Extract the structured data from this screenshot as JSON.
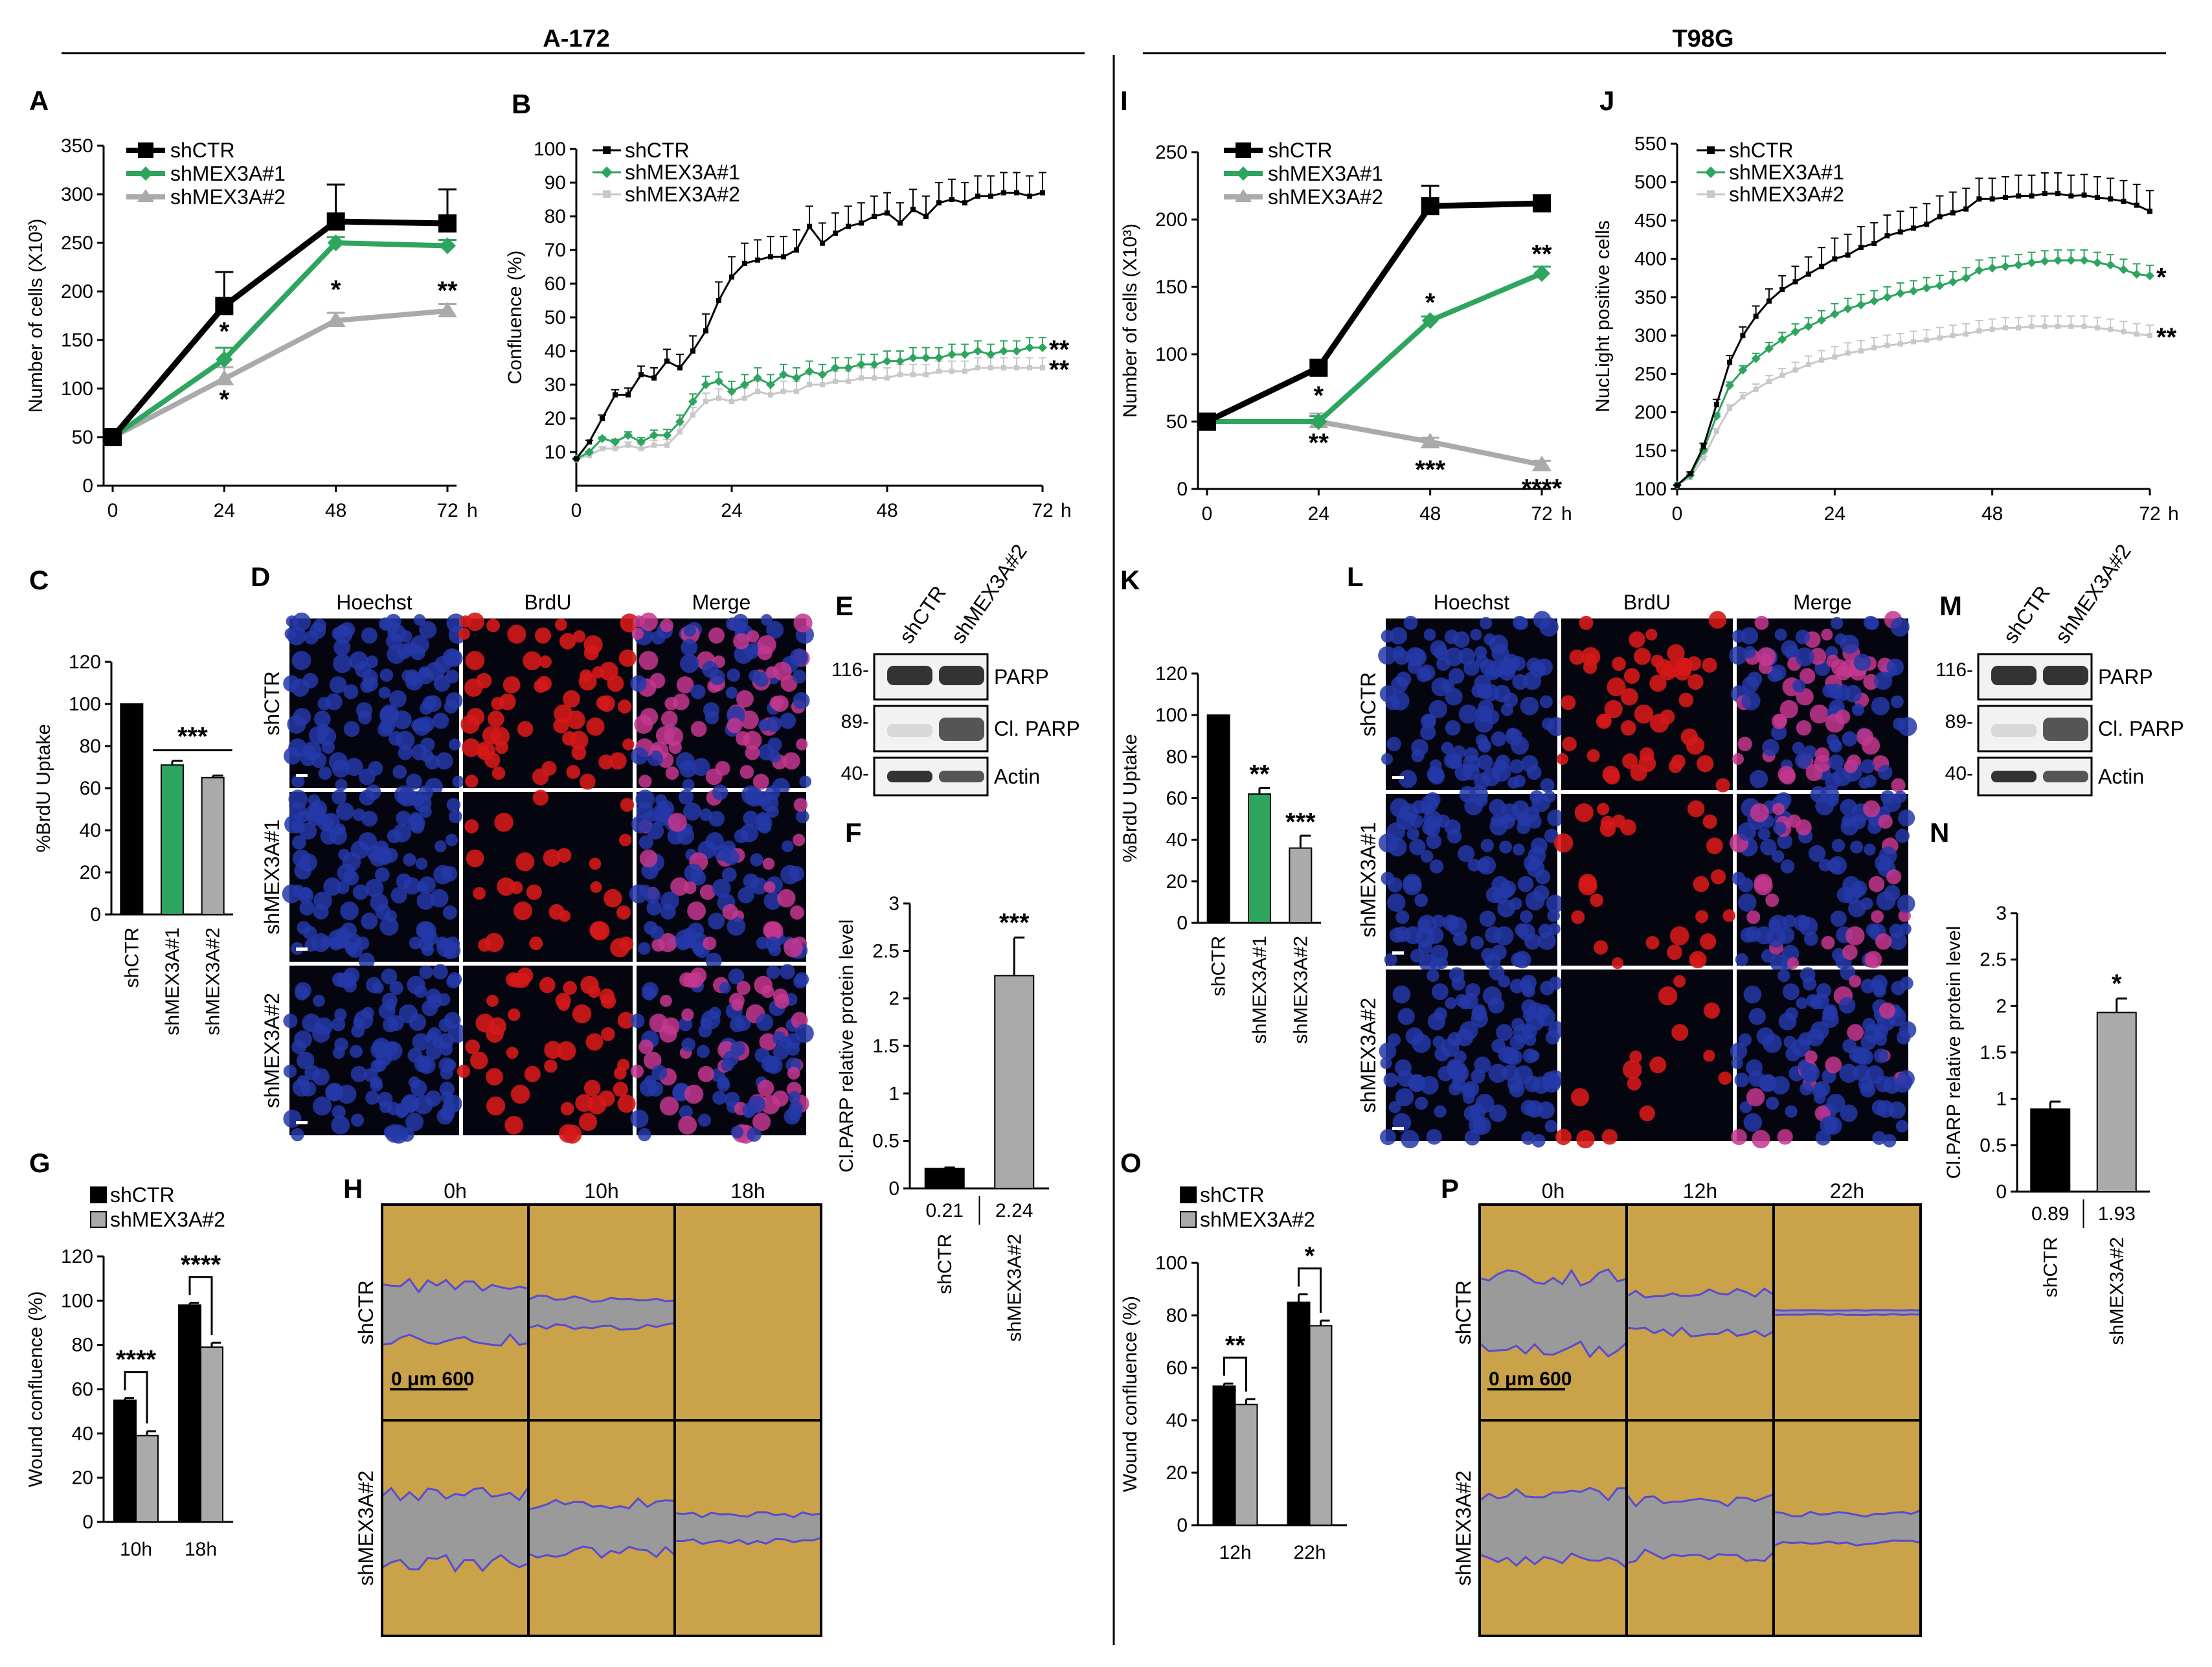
{
  "headers": {
    "left": "A-172",
    "right": "T98G"
  },
  "colors": {
    "black": "#000000",
    "green": "#2ea55f",
    "gray": "#aaaaaa",
    "lightgray": "#c8c8c8",
    "hoechst": "#2438a8",
    "brdu": "#d41818",
    "wound_bg": "#c9a24a",
    "wound_gap": "#9a9a9a"
  },
  "panels": {
    "A": {
      "letter": "A",
      "type": "line",
      "ylabel": "Number of cells (X10³)",
      "ylim": [
        0,
        350
      ],
      "yticks": [
        0,
        50,
        100,
        150,
        200,
        250,
        300,
        350
      ],
      "xticks": [
        "0",
        "24",
        "48",
        "72"
      ],
      "xunit": "h",
      "x": [
        0,
        24,
        48,
        72
      ],
      "series": [
        {
          "name": "shCTR",
          "values": [
            50,
            185,
            272,
            270
          ],
          "err": [
            0,
            35,
            38,
            35
          ]
        },
        {
          "name": "shMEX3A#1",
          "values": [
            50,
            130,
            250,
            247
          ],
          "err": [
            0,
            12,
            6,
            6
          ]
        },
        {
          "name": "shMEX3A#2",
          "values": [
            50,
            110,
            170,
            180
          ],
          "err": [
            0,
            12,
            8,
            7
          ]
        }
      ],
      "stars": [
        {
          "x": 24,
          "text": "*",
          "y": 150
        },
        {
          "x": 24,
          "text": "*",
          "y": 80
        },
        {
          "x": 48,
          "text": "*",
          "y": 193
        },
        {
          "x": 72,
          "text": "**",
          "y": 192
        }
      ]
    },
    "B": {
      "letter": "B",
      "type": "line",
      "ylabel": "Confluence (%)",
      "ylim": [
        0,
        100
      ],
      "yticks": [
        10,
        20,
        30,
        40,
        50,
        60,
        70,
        80,
        90,
        100
      ],
      "xticks": [
        "0",
        "24",
        "48",
        "72"
      ],
      "xunit": "h",
      "series": [
        {
          "name": "shCTR",
          "values": [
            8,
            13,
            20,
            27,
            27,
            33,
            32,
            37,
            35,
            40,
            46,
            55,
            62,
            66,
            67,
            68,
            68,
            70,
            77,
            72,
            75,
            77,
            78,
            80,
            81,
            78,
            82,
            80,
            84,
            85,
            84,
            86,
            86,
            87,
            87,
            86,
            87
          ]
        },
        {
          "name": "shMEX3A#1",
          "values": [
            8,
            10,
            14,
            13,
            15,
            13,
            15,
            15,
            19,
            25,
            30,
            31,
            28,
            30,
            32,
            30,
            33,
            32,
            34,
            33,
            35,
            35,
            36,
            36,
            37,
            37,
            38,
            38,
            38,
            39,
            39,
            40,
            39,
            40,
            40,
            41,
            41
          ]
        },
        {
          "name": "shMEX3A#2",
          "values": [
            8,
            9,
            11,
            11,
            12,
            11,
            12,
            12,
            16,
            21,
            25,
            26,
            25,
            26,
            28,
            27,
            28,
            28,
            30,
            30,
            31,
            31,
            32,
            32,
            32,
            33,
            33,
            33,
            34,
            34,
            34,
            35,
            35,
            35,
            35,
            35,
            35
          ]
        }
      ],
      "stars": [
        {
          "text": "**",
          "y": 41
        },
        {
          "text": "**",
          "y": 35
        }
      ]
    },
    "C": {
      "letter": "C",
      "type": "bar",
      "ylabel": "%BrdU Uptake",
      "ylim": [
        0,
        120
      ],
      "yticks": [
        0,
        20,
        40,
        60,
        80,
        100,
        120
      ],
      "categories": [
        "shCTR",
        "shMEX3A#1",
        "shMEX3A#2"
      ],
      "values": [
        100,
        71,
        65
      ],
      "err": [
        0,
        2,
        1
      ],
      "star": "***"
    },
    "D": {
      "letter": "D",
      "columns": [
        "Hoechst",
        "BrdU",
        "Merge"
      ],
      "rows": [
        "shCTR",
        "shMEX3A#1",
        "shMEX3A#2"
      ]
    },
    "E": {
      "letter": "E",
      "lanes": [
        "shCTR",
        "shMEX3A#2"
      ],
      "bands": [
        {
          "mw": "116-",
          "label": "PARP"
        },
        {
          "mw": "89-",
          "label": "Cl. PARP"
        },
        {
          "mw": "40-",
          "label": "Actin"
        }
      ]
    },
    "F": {
      "letter": "F",
      "type": "bar",
      "ylabel": "Cl.PARP relative protein level",
      "ylim": [
        0,
        3
      ],
      "yticks": [
        "0",
        "0.5",
        "1",
        "1.5",
        "2",
        "2.5",
        "3"
      ],
      "categories": [
        "shCTR",
        "shMEX3A#2"
      ],
      "values": [
        0.21,
        2.24
      ],
      "err": [
        0.01,
        0.4
      ],
      "value_labels": [
        "0.21",
        "2.24"
      ],
      "star": "***"
    },
    "G": {
      "letter": "G",
      "type": "bar",
      "ylabel": "Wound confluence (%)",
      "ylim": [
        0,
        120
      ],
      "yticks": [
        0,
        20,
        40,
        60,
        80,
        100,
        120
      ],
      "categories": [
        "10h",
        "18h"
      ],
      "legend": [
        "shCTR",
        "shMEX3A#2"
      ],
      "series": [
        {
          "name": "shCTR",
          "values": [
            55,
            98
          ],
          "err": [
            1,
            1
          ]
        },
        {
          "name": "shMEX3A#2",
          "values": [
            39,
            79
          ],
          "err": [
            2,
            2
          ]
        }
      ],
      "stars": [
        "****",
        "****"
      ]
    },
    "H": {
      "letter": "H",
      "columns": [
        "0h",
        "10h",
        "18h"
      ],
      "rows": [
        "shCTR",
        "shMEX3A#2"
      ],
      "scale": "0  μm 600"
    },
    "I": {
      "letter": "I",
      "type": "line",
      "ylabel": "Number of cells (X10³)",
      "ylim": [
        0,
        250
      ],
      "yticks": [
        0,
        50,
        100,
        150,
        200,
        250
      ],
      "xticks": [
        "0",
        "24",
        "48",
        "72"
      ],
      "xunit": "h",
      "x": [
        0,
        24,
        48,
        72
      ],
      "series": [
        {
          "name": "shCTR",
          "values": [
            50,
            90,
            210,
            212
          ],
          "err": [
            0,
            4,
            15,
            4
          ]
        },
        {
          "name": "shMEX3A#1",
          "values": [
            50,
            50,
            125,
            160
          ],
          "err": [
            0,
            4,
            3,
            5
          ]
        },
        {
          "name": "shMEX3A#2",
          "values": [
            50,
            50,
            35,
            18
          ],
          "err": [
            0,
            6,
            3,
            3
          ]
        }
      ],
      "stars": [
        {
          "x": 72,
          "text": "**",
          "y": 168
        },
        {
          "x": 48,
          "text": "*",
          "y": 132
        },
        {
          "x": 24,
          "text": "*",
          "y": 63
        },
        {
          "x": 24,
          "text": "**",
          "y": 28
        },
        {
          "x": 48,
          "text": "***",
          "y": 8
        },
        {
          "x": 72,
          "text": "****",
          "y": -6
        }
      ]
    },
    "J": {
      "letter": "J",
      "type": "line",
      "ylabel": "NucLight positive cells",
      "ylim": [
        100,
        550
      ],
      "yticks": [
        100,
        150,
        200,
        250,
        300,
        350,
        400,
        450,
        500,
        550
      ],
      "xticks": [
        "0",
        "24",
        "48",
        "72"
      ],
      "xunit": "h",
      "series": [
        {
          "name": "shCTR",
          "values": [
            105,
            120,
            155,
            210,
            265,
            300,
            325,
            345,
            360,
            370,
            380,
            390,
            400,
            405,
            415,
            420,
            430,
            435,
            440,
            445,
            455,
            460,
            465,
            478,
            478,
            480,
            482,
            482,
            485,
            485,
            482,
            483,
            480,
            478,
            475,
            470,
            462
          ]
        },
        {
          "name": "shMEX3A#1",
          "values": [
            105,
            118,
            150,
            195,
            235,
            255,
            270,
            283,
            295,
            305,
            312,
            320,
            328,
            335,
            340,
            345,
            350,
            355,
            358,
            362,
            365,
            370,
            375,
            385,
            388,
            390,
            392,
            395,
            397,
            398,
            398,
            398,
            395,
            392,
            386,
            380,
            378
          ]
        },
        {
          "name": "shMEX3A#2",
          "values": [
            105,
            115,
            140,
            175,
            205,
            220,
            230,
            240,
            248,
            255,
            262,
            268,
            272,
            277,
            280,
            284,
            287,
            289,
            292,
            294,
            297,
            300,
            302,
            306,
            308,
            310,
            310,
            312,
            312,
            312,
            312,
            312,
            310,
            308,
            305,
            302,
            300
          ]
        }
      ],
      "stars": [
        {
          "text": "*",
          "y": 378
        },
        {
          "text": "**",
          "y": 300
        }
      ]
    },
    "K": {
      "letter": "K",
      "type": "bar",
      "ylabel": "%BrdU Uptake",
      "ylim": [
        0,
        120
      ],
      "yticks": [
        0,
        20,
        40,
        60,
        80,
        100,
        120
      ],
      "categories": [
        "shCTR",
        "shMEX3A#1",
        "shMEX3A#2"
      ],
      "values": [
        100,
        62,
        36
      ],
      "err": [
        0,
        3,
        6
      ],
      "stars": [
        "",
        "**",
        "***"
      ]
    },
    "L": {
      "letter": "L",
      "columns": [
        "Hoechst",
        "BrdU",
        "Merge"
      ],
      "rows": [
        "shCTR",
        "shMEX3A#1",
        "shMEX3A#2"
      ]
    },
    "M": {
      "letter": "M",
      "lanes": [
        "shCTR",
        "shMEX3A#2"
      ],
      "bands": [
        {
          "mw": "116-",
          "label": "PARP"
        },
        {
          "mw": "89-",
          "label": "Cl. PARP"
        },
        {
          "mw": "40-",
          "label": "Actin"
        }
      ]
    },
    "N": {
      "letter": "N",
      "type": "bar",
      "ylabel": "Cl.PARP relative protein level",
      "ylim": [
        0,
        3
      ],
      "yticks": [
        "0",
        "0.5",
        "1",
        "1.5",
        "2",
        "2.5",
        "3"
      ],
      "categories": [
        "shCTR",
        "shMEX3A#2"
      ],
      "values": [
        0.89,
        1.93
      ],
      "err": [
        0.08,
        0.15
      ],
      "value_labels": [
        "0.89",
        "1.93"
      ],
      "star": "*"
    },
    "O": {
      "letter": "O",
      "type": "bar",
      "ylabel": "Wound confluence (%)",
      "ylim": [
        0,
        100
      ],
      "yticks": [
        0,
        20,
        40,
        60,
        80,
        100
      ],
      "categories": [
        "12h",
        "22h"
      ],
      "legend": [
        "shCTR",
        "shMEX3A#2"
      ],
      "series": [
        {
          "name": "shCTR",
          "values": [
            53,
            85
          ],
          "err": [
            1,
            3
          ]
        },
        {
          "name": "shMEX3A#2",
          "values": [
            46,
            76
          ],
          "err": [
            2,
            2
          ]
        }
      ],
      "stars": [
        "**",
        "*"
      ]
    },
    "P": {
      "letter": "P",
      "columns": [
        "0h",
        "12h",
        "22h"
      ],
      "rows": [
        "shCTR",
        "shMEX3A#2"
      ],
      "scale": "0  μm 600"
    }
  },
  "chart_data": [
    {
      "panel": "A",
      "type": "line",
      "title": "",
      "xlabel": "",
      "ylabel": "Number of cells (X10³)",
      "x": [
        0,
        24,
        48,
        72
      ],
      "ylim": [
        0,
        350
      ],
      "series": [
        {
          "name": "shCTR",
          "values": [
            50,
            185,
            272,
            270
          ]
        },
        {
          "name": "shMEX3A#1",
          "values": [
            50,
            130,
            250,
            247
          ]
        },
        {
          "name": "shMEX3A#2",
          "values": [
            50,
            110,
            170,
            180
          ]
        }
      ]
    },
    {
      "panel": "B",
      "type": "line",
      "title": "",
      "xlabel": "",
      "ylabel": "Confluence (%)",
      "xlim": [
        0,
        72
      ],
      "ylim": [
        0,
        100
      ],
      "series": [
        {
          "name": "shCTR",
          "final": 87
        },
        {
          "name": "shMEX3A#1",
          "final": 41
        },
        {
          "name": "shMEX3A#2",
          "final": 35
        }
      ]
    },
    {
      "panel": "C",
      "type": "bar",
      "title": "",
      "xlabel": "",
      "ylabel": "%BrdU Uptake",
      "categories": [
        "shCTR",
        "shMEX3A#1",
        "shMEX3A#2"
      ],
      "values": [
        100,
        71,
        65
      ],
      "ylim": [
        0,
        120
      ]
    },
    {
      "panel": "F",
      "type": "bar",
      "title": "",
      "xlabel": "",
      "ylabel": "Cl.PARP relative protein level",
      "categories": [
        "shCTR",
        "shMEX3A#2"
      ],
      "values": [
        0.21,
        2.24
      ],
      "ylim": [
        0,
        3
      ]
    },
    {
      "panel": "G",
      "type": "bar",
      "title": "",
      "xlabel": "",
      "ylabel": "Wound confluence (%)",
      "categories": [
        "10h",
        "18h"
      ],
      "ylim": [
        0,
        120
      ],
      "series": [
        {
          "name": "shCTR",
          "values": [
            55,
            98
          ]
        },
        {
          "name": "shMEX3A#2",
          "values": [
            39,
            79
          ]
        }
      ]
    },
    {
      "panel": "I",
      "type": "line",
      "title": "",
      "xlabel": "",
      "ylabel": "Number of cells (X10³)",
      "x": [
        0,
        24,
        48,
        72
      ],
      "ylim": [
        0,
        250
      ],
      "series": [
        {
          "name": "shCTR",
          "values": [
            50,
            90,
            210,
            212
          ]
        },
        {
          "name": "shMEX3A#1",
          "values": [
            50,
            50,
            125,
            160
          ]
        },
        {
          "name": "shMEX3A#2",
          "values": [
            50,
            50,
            35,
            18
          ]
        }
      ]
    },
    {
      "panel": "J",
      "type": "line",
      "title": "",
      "xlabel": "",
      "ylabel": "NucLight positive cells",
      "xlim": [
        0,
        72
      ],
      "ylim": [
        100,
        550
      ],
      "series": [
        {
          "name": "shCTR",
          "final": 462
        },
        {
          "name": "shMEX3A#1",
          "final": 378
        },
        {
          "name": "shMEX3A#2",
          "final": 300
        }
      ]
    },
    {
      "panel": "K",
      "type": "bar",
      "title": "",
      "xlabel": "",
      "ylabel": "%BrdU Uptake",
      "categories": [
        "shCTR",
        "shMEX3A#1",
        "shMEX3A#2"
      ],
      "values": [
        100,
        62,
        36
      ],
      "ylim": [
        0,
        120
      ]
    },
    {
      "panel": "N",
      "type": "bar",
      "title": "",
      "xlabel": "",
      "ylabel": "Cl.PARP relative protein level",
      "categories": [
        "shCTR",
        "shMEX3A#2"
      ],
      "values": [
        0.89,
        1.93
      ],
      "ylim": [
        0,
        3
      ]
    },
    {
      "panel": "O",
      "type": "bar",
      "title": "",
      "xlabel": "",
      "ylabel": "Wound confluence (%)",
      "categories": [
        "12h",
        "22h"
      ],
      "ylim": [
        0,
        100
      ],
      "series": [
        {
          "name": "shCTR",
          "values": [
            53,
            85
          ]
        },
        {
          "name": "shMEX3A#2",
          "values": [
            46,
            76
          ]
        }
      ]
    }
  ]
}
